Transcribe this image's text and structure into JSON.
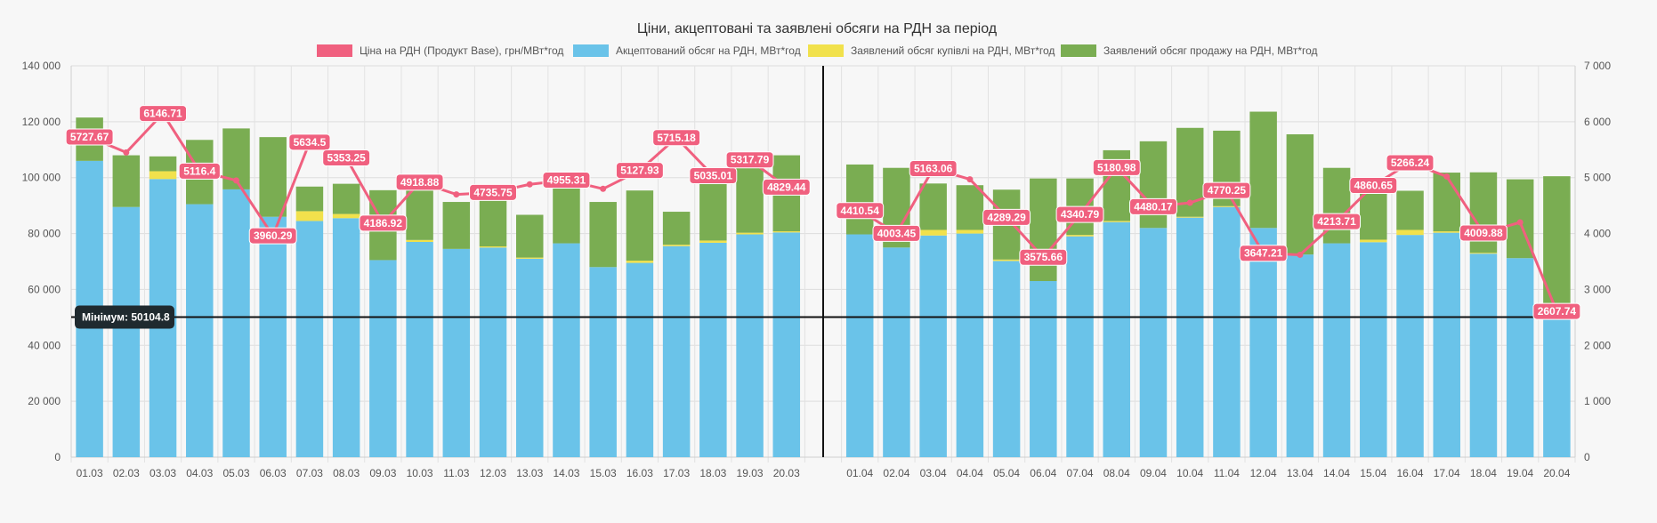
{
  "chart_data": {
    "type": "bar",
    "title": "Ціни, акцептовані та заявлені обсяги на РДН за період",
    "series": [
      {
        "name": "Ціна на РДН (Продукт Base), грн/МВт*год",
        "type": "line",
        "axis": "right",
        "color": "#f0607f",
        "values": [
          5727.67,
          5450,
          6146.71,
          5116.4,
          4950,
          3960.29,
          5634.5,
          5353.25,
          4186.92,
          4918.88,
          4700,
          4735.75,
          4880,
          4955.31,
          4800,
          5127.93,
          5715.18,
          5035.01,
          5317.79,
          4829.44,
          4410.54,
          4003.45,
          5163.06,
          4970,
          4289.29,
          3575.66,
          4340.79,
          5180.98,
          4480.17,
          4550,
          4770.25,
          3647.21,
          3620,
          4213.71,
          4860.65,
          5266.24,
          5020,
          4009.88,
          4200,
          2607.74
        ],
        "labels": [
          "5727.67",
          "",
          "6146.71",
          "5116.4",
          "",
          "3960.29",
          "5634.5",
          "5353.25",
          "4186.92",
          "4918.88",
          "",
          "4735.75",
          "",
          "4955.31",
          "",
          "5127.93",
          "5715.18",
          "5035.01",
          "5317.79",
          "4829.44",
          "4410.54",
          "4003.45",
          "5163.06",
          "",
          "4289.29",
          "3575.66",
          "4340.79",
          "5180.98",
          "4480.17",
          "",
          "4770.25",
          "3647.21",
          "",
          "4213.71",
          "4860.65",
          "5266.24",
          "",
          "4009.88",
          "",
          "2607.74"
        ]
      },
      {
        "name": "Акцептований обсяг на РДН, МВт*год",
        "type": "bar",
        "axis": "left",
        "color": "#6ac3e9",
        "values": [
          106000,
          89500,
          99500,
          90500,
          95800,
          86000,
          84500,
          85500,
          70500,
          77000,
          74500,
          75000,
          71000,
          76500,
          68000,
          69500,
          75500,
          76700,
          79700,
          80400,
          79700,
          75000,
          79300,
          80000,
          70200,
          63000,
          79000,
          84100,
          82000,
          85700,
          89500,
          82000,
          72500,
          76500,
          76900,
          79500,
          80300,
          72800,
          71200,
          50100
        ]
      },
      {
        "name": "Заявлений обсяг купівлі на РДН, МВт*год",
        "type": "bar",
        "axis": "left",
        "color": "#f1e14c",
        "values": [
          0,
          0,
          2800,
          0,
          0,
          0,
          3500,
          1500,
          0,
          700,
          0,
          400,
          400,
          0,
          0,
          800,
          500,
          800,
          600,
          400,
          0,
          0,
          2000,
          1300,
          500,
          0,
          500,
          400,
          0,
          300,
          300,
          0,
          0,
          0,
          900,
          1800,
          500,
          300,
          0,
          0
        ]
      },
      {
        "name": "Заявлений обсяг продажу на РДН, МВт*год",
        "type": "bar",
        "axis": "left",
        "color": "#7aad52",
        "values": [
          15500,
          18500,
          5300,
          23000,
          21800,
          28500,
          8800,
          10800,
          25000,
          20200,
          16800,
          16800,
          15300,
          21100,
          23300,
          25100,
          11800,
          23200,
          23800,
          27200,
          25000,
          28500,
          16600,
          16000,
          25000,
          36700,
          20200,
          25300,
          31000,
          31800,
          27000,
          41600,
          43000,
          27000,
          19700,
          14000,
          21000,
          28800,
          28200,
          50400
        ]
      }
    ],
    "categories_group1": [
      "01.03",
      "02.03",
      "03.03",
      "04.03",
      "05.03",
      "06.03",
      "07.03",
      "08.03",
      "09.03",
      "10.03",
      "11.03",
      "12.03",
      "13.03",
      "14.03",
      "15.03",
      "16.03",
      "17.03",
      "18.03",
      "19.03",
      "20.03"
    ],
    "categories_group2": [
      "01.04",
      "02.04",
      "03.04",
      "04.04",
      "05.04",
      "06.04",
      "07.04",
      "08.04",
      "09.04",
      "10.04",
      "11.04",
      "12.04",
      "13.04",
      "14.04",
      "15.04",
      "16.04",
      "17.04",
      "18.04",
      "19.04",
      "20.04"
    ],
    "y_left": {
      "min": 0,
      "max": 140000,
      "ticks": [
        "0",
        "20 000",
        "40 000",
        "60 000",
        "80 000",
        "100 000",
        "120 000",
        "140 000"
      ]
    },
    "y_right": {
      "min": 0,
      "max": 7000,
      "ticks": [
        "0",
        "1 000",
        "2 000",
        "3 000",
        "4 000",
        "5 000",
        "6 000",
        "7 000"
      ]
    },
    "annotation": {
      "value": 50104.8,
      "label": "Мінімум: 50104.8"
    },
    "grid": true,
    "legend_position": "top"
  }
}
